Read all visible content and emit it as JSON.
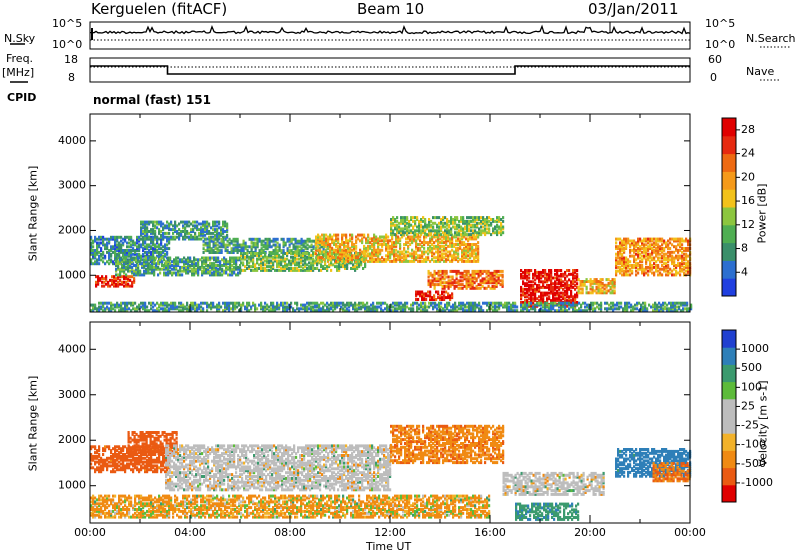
{
  "header": {
    "station": "Kerguelen (fitACF)",
    "beam": "Beam 10",
    "date": "03/Jan/2011"
  },
  "side_labels": {
    "nsky": "N.Sky",
    "freq": "Freq.",
    "freq_unit": "[MHz]",
    "cpid": "CPID",
    "nsearch": "N.Search",
    "nave": "Nave"
  },
  "cpid_name": "normal (fast) 151",
  "nsky_ticks": [
    "10^5",
    "10^0"
  ],
  "nsearch_ticks": [
    "10^5",
    "10^0"
  ],
  "freq_ticks": [
    "18",
    "8"
  ],
  "nave_ticks": [
    "60",
    "0"
  ],
  "colors": {
    "power": [
      "#2040e0",
      "#2c6fd0",
      "#3a8f6a",
      "#4fae52",
      "#8cc63f",
      "#f2c21b",
      "#f59a1a",
      "#ee6a12",
      "#e62a10",
      "#e00000"
    ],
    "velocity": [
      "#2040d0",
      "#2e7fb8",
      "#3b9a6e",
      "#5dbb3a",
      "#bdbdbd",
      "#bdbdbd",
      "#f2b22a",
      "#f08a12",
      "#ea5a12",
      "#e00000"
    ],
    "ground_scatter": "#bdbdbd"
  },
  "chart_data": [
    {
      "type": "heatmap",
      "title": "Power",
      "xlabel": "",
      "ylabel": "Slant Range [km]",
      "x_range_hours": [
        0,
        24
      ],
      "ylim": [
        180,
        4600
      ],
      "yticks": [
        "1000",
        "2000",
        "3000",
        "4000"
      ],
      "colorbar_label": "Power [dB]",
      "colorbar_ticks": [
        "4",
        "8",
        "12",
        "16",
        "20",
        "24",
        "28"
      ],
      "colorbar_range": [
        0,
        30
      ],
      "regions": [
        {
          "t": [
            0.0,
            3.2
          ],
          "r": [
            1250,
            1850
          ],
          "v": 7
        },
        {
          "t": [
            0.2,
            1.8
          ],
          "r": [
            750,
            1000
          ],
          "v": 26
        },
        {
          "t": [
            1.0,
            6.0
          ],
          "r": [
            1000,
            1400
          ],
          "v": 9
        },
        {
          "t": [
            2.0,
            5.5
          ],
          "r": [
            1800,
            2200
          ],
          "v": 8
        },
        {
          "t": [
            4.5,
            9.5
          ],
          "r": [
            1500,
            1800
          ],
          "v": 9
        },
        {
          "t": [
            6.0,
            11.0
          ],
          "r": [
            1100,
            1500
          ],
          "v": 12
        },
        {
          "t": [
            9.0,
            15.5
          ],
          "r": [
            1300,
            1900
          ],
          "v": 18
        },
        {
          "t": [
            12.0,
            16.5
          ],
          "r": [
            1900,
            2300
          ],
          "v": 12
        },
        {
          "t": [
            13.5,
            16.5
          ],
          "r": [
            700,
            1100
          ],
          "v": 22
        },
        {
          "t": [
            13.0,
            14.5
          ],
          "r": [
            450,
            650
          ],
          "v": 27
        },
        {
          "t": [
            17.2,
            19.5
          ],
          "r": [
            300,
            1100
          ],
          "v": 28
        },
        {
          "t": [
            19.5,
            21.0
          ],
          "r": [
            600,
            900
          ],
          "v": 18
        },
        {
          "t": [
            21.0,
            24.0
          ],
          "r": [
            1000,
            1800
          ],
          "v": 20
        },
        {
          "t": [
            0.0,
            24.0
          ],
          "r": [
            200,
            400
          ],
          "v": 8
        }
      ]
    },
    {
      "type": "heatmap",
      "title": "Velocity",
      "xlabel": "Time UT",
      "ylabel": "Slant Range [km]",
      "x_range_hours": [
        0,
        24
      ],
      "xticks": [
        "00:00",
        "04:00",
        "08:00",
        "12:00",
        "16:00",
        "20:00",
        "00:00"
      ],
      "ylim": [
        180,
        4600
      ],
      "yticks": [
        "1000",
        "2000",
        "3000",
        "4000"
      ],
      "colorbar_label": "Velocity [m s-1]",
      "colorbar_ticks": [
        "1000",
        "500",
        "100",
        "25",
        "-25",
        "-100",
        "-500",
        "-1000"
      ],
      "regions": [
        {
          "t": [
            0.0,
            3.2
          ],
          "r": [
            1300,
            1850
          ],
          "v": -300
        },
        {
          "t": [
            1.5,
            3.5
          ],
          "r": [
            1700,
            2200
          ],
          "v": -400
        },
        {
          "t": [
            3.0,
            12.0
          ],
          "r": [
            900,
            1900
          ],
          "v": 0,
          "ground": true
        },
        {
          "t": [
            0.0,
            16.0
          ],
          "r": [
            300,
            800
          ],
          "v": -60
        },
        {
          "t": [
            12.0,
            16.5
          ],
          "r": [
            1500,
            2300
          ],
          "v": -150
        },
        {
          "t": [
            16.5,
            20.5
          ],
          "r": [
            800,
            1300
          ],
          "v": 0,
          "ground": true
        },
        {
          "t": [
            17.0,
            19.5
          ],
          "r": [
            250,
            600
          ],
          "v": 150
        },
        {
          "t": [
            21.0,
            24.0
          ],
          "r": [
            1200,
            1800
          ],
          "v": 300
        },
        {
          "t": [
            22.5,
            24.0
          ],
          "r": [
            1100,
            1500
          ],
          "v": -200
        }
      ]
    }
  ]
}
